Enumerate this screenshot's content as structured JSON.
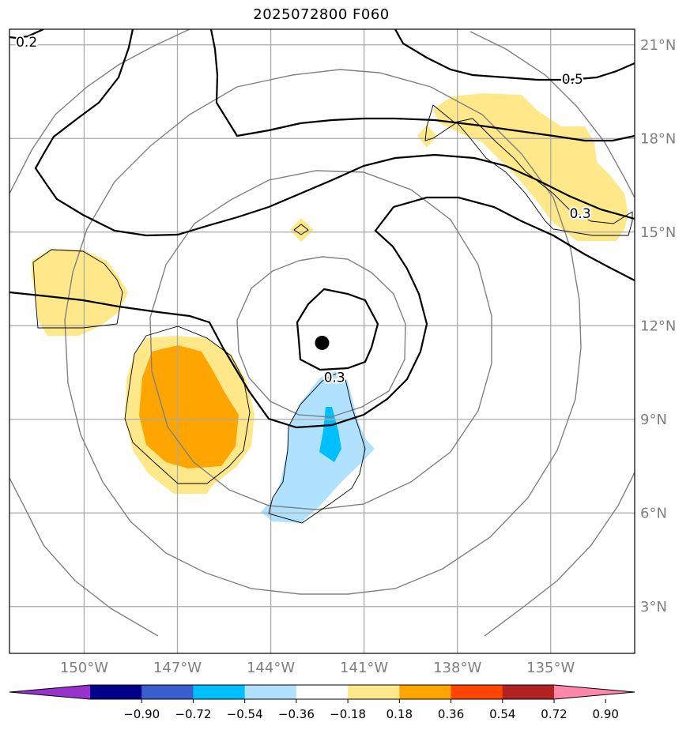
{
  "title": "2025072800 F060",
  "map": {
    "lon_ticks": [
      {
        "lon": -150,
        "label": "150°W"
      },
      {
        "lon": -147,
        "label": "147°W"
      },
      {
        "lon": -144,
        "label": "144°W"
      },
      {
        "lon": -141,
        "label": "141°W"
      },
      {
        "lon": -138,
        "label": "138°W"
      },
      {
        "lon": -135,
        "label": "135°W"
      }
    ],
    "lat_ticks": [
      {
        "lat": 21,
        "label": "21°N"
      },
      {
        "lat": 18,
        "label": "18°N"
      },
      {
        "lat": 15,
        "label": "15°N"
      },
      {
        "lat": 12,
        "label": "12°N"
      },
      {
        "lat": 9,
        "label": "9°N"
      },
      {
        "lat": 6,
        "label": "6°N"
      },
      {
        "lat": 3,
        "label": "3°N"
      }
    ],
    "lon_range": [
      -152.4,
      -132.3
    ],
    "lat_range": [
      1.5,
      21.5
    ],
    "storm_center": {
      "lon": -142.35,
      "lat": 11.45
    },
    "contour_labels": [
      {
        "text": "0.2",
        "lon": -151.85,
        "lat": 21.1
      },
      {
        "text": "0.5",
        "lon": -134.3,
        "lat": 19.9
      },
      {
        "text": "0.3",
        "lon": -134.05,
        "lat": 15.6
      },
      {
        "text": "0.3",
        "lon": -141.95,
        "lat": 10.35
      }
    ]
  },
  "colorbar": {
    "ticks": [
      "−0.90",
      "−0.72",
      "−0.54",
      "−0.36",
      "−0.18",
      "0.18",
      "0.36",
      "0.54",
      "0.72",
      "0.90"
    ],
    "colors": [
      "#9932cc",
      "#00008b",
      "#3a5fcd",
      "#00bfff",
      "#b0e2ff",
      "#ffffff",
      "#ffe88a",
      "#ffa500",
      "#ff4500",
      "#b22222",
      "#ff88aa"
    ],
    "extend": "both"
  },
  "colors": {
    "shade_pos_light": "#ffe88a",
    "shade_pos_mid": "#ffa500",
    "shade_neg_light": "#b0e2ff",
    "shade_neg_mid": "#00bfff",
    "grid": "#aaaaaa",
    "range_ring": "#808080",
    "contour": "#000000",
    "tick_text": "#808080"
  }
}
